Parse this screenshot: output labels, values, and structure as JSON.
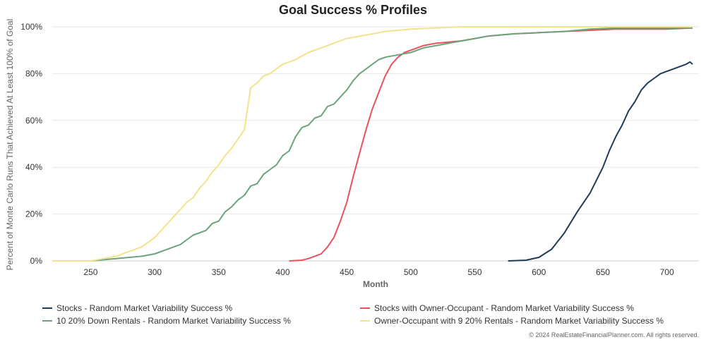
{
  "credit": "© 2024 RealEstateFinancialPlanner.com. All rights reserved.",
  "chart_data": {
    "type": "line",
    "title": "Goal Success % Profiles",
    "xlabel": "Month",
    "ylabel": "Percent of Monte Carlo Runs That Achieved At Least 100% of Goal",
    "xlim": [
      220,
      725
    ],
    "ylim": [
      0,
      100
    ],
    "x_ticks": [
      "250",
      "300",
      "350",
      "400",
      "450",
      "500",
      "550",
      "600",
      "650",
      "700"
    ],
    "y_ticks": [
      "0%",
      "20%",
      "40%",
      "60%",
      "80%",
      "100%"
    ],
    "grid": "horizontal",
    "legend_position": "bottom",
    "series": [
      {
        "name": "Stocks - Random Market Variability Success %",
        "color": "#1f3b57",
        "points": [
          [
            576,
            0
          ],
          [
            590,
            0.3
          ],
          [
            600,
            1.5
          ],
          [
            610,
            5
          ],
          [
            620,
            12
          ],
          [
            630,
            21
          ],
          [
            640,
            29
          ],
          [
            650,
            40
          ],
          [
            655,
            47
          ],
          [
            660,
            53
          ],
          [
            665,
            58
          ],
          [
            670,
            64
          ],
          [
            675,
            68
          ],
          [
            680,
            73
          ],
          [
            685,
            76
          ],
          [
            690,
            78
          ],
          [
            695,
            80
          ],
          [
            700,
            81
          ],
          [
            705,
            82
          ],
          [
            710,
            83
          ],
          [
            715,
            84
          ],
          [
            718,
            85
          ],
          [
            720,
            84
          ]
        ]
      },
      {
        "name": "Stocks with Owner-Occupant - Random Market Variability Success %",
        "color": "#e8535b",
        "points": [
          [
            405,
            0
          ],
          [
            415,
            0.3
          ],
          [
            420,
            1
          ],
          [
            425,
            2
          ],
          [
            430,
            3
          ],
          [
            435,
            6
          ],
          [
            440,
            10
          ],
          [
            445,
            17
          ],
          [
            450,
            25
          ],
          [
            455,
            36
          ],
          [
            460,
            46
          ],
          [
            465,
            56
          ],
          [
            470,
            65
          ],
          [
            475,
            72
          ],
          [
            480,
            79
          ],
          [
            485,
            84
          ],
          [
            490,
            87
          ],
          [
            495,
            89
          ],
          [
            500,
            90
          ],
          [
            510,
            92
          ],
          [
            520,
            93
          ],
          [
            530,
            93.5
          ],
          [
            540,
            94
          ],
          [
            550,
            95
          ],
          [
            560,
            96
          ],
          [
            570,
            96.5
          ],
          [
            580,
            97
          ],
          [
            600,
            97.5
          ],
          [
            620,
            98
          ],
          [
            640,
            98.5
          ],
          [
            660,
            99
          ],
          [
            680,
            99
          ],
          [
            700,
            99
          ],
          [
            720,
            99.5
          ]
        ]
      },
      {
        "name": "10 20% Down Rentals - Random Market Variability Success %",
        "color": "#6aa47d",
        "points": [
          [
            220,
            0
          ],
          [
            250,
            0
          ],
          [
            260,
            0.5
          ],
          [
            270,
            1
          ],
          [
            280,
            1.5
          ],
          [
            290,
            2
          ],
          [
            300,
            3
          ],
          [
            310,
            5
          ],
          [
            320,
            7
          ],
          [
            330,
            11
          ],
          [
            340,
            13
          ],
          [
            345,
            16
          ],
          [
            350,
            17
          ],
          [
            355,
            21
          ],
          [
            360,
            23
          ],
          [
            365,
            26
          ],
          [
            370,
            28
          ],
          [
            375,
            32
          ],
          [
            380,
            33
          ],
          [
            385,
            37
          ],
          [
            390,
            39
          ],
          [
            395,
            41
          ],
          [
            400,
            45
          ],
          [
            405,
            47
          ],
          [
            410,
            53
          ],
          [
            415,
            57
          ],
          [
            420,
            58
          ],
          [
            425,
            61
          ],
          [
            430,
            62
          ],
          [
            435,
            66
          ],
          [
            440,
            67
          ],
          [
            445,
            70
          ],
          [
            450,
            73
          ],
          [
            455,
            77
          ],
          [
            460,
            80
          ],
          [
            465,
            82
          ],
          [
            470,
            84
          ],
          [
            475,
            86
          ],
          [
            480,
            87
          ],
          [
            490,
            88
          ],
          [
            500,
            89
          ],
          [
            510,
            91
          ],
          [
            520,
            92
          ],
          [
            530,
            93
          ],
          [
            540,
            94
          ],
          [
            550,
            95
          ],
          [
            560,
            96
          ],
          [
            580,
            97
          ],
          [
            600,
            97.5
          ],
          [
            620,
            98
          ],
          [
            640,
            99
          ],
          [
            660,
            99.5
          ],
          [
            680,
            99.5
          ],
          [
            700,
            99.5
          ],
          [
            720,
            99.5
          ]
        ]
      },
      {
        "name": "Owner-Occupant with 9 20% Rentals - Random Market Variability Success %",
        "color": "#f2e38c",
        "points": [
          [
            220,
            0
          ],
          [
            250,
            0
          ],
          [
            260,
            1
          ],
          [
            270,
            2
          ],
          [
            280,
            4
          ],
          [
            290,
            6
          ],
          [
            300,
            10
          ],
          [
            305,
            13
          ],
          [
            310,
            16
          ],
          [
            315,
            19
          ],
          [
            320,
            22
          ],
          [
            325,
            25
          ],
          [
            330,
            27
          ],
          [
            335,
            31
          ],
          [
            340,
            34
          ],
          [
            345,
            38
          ],
          [
            350,
            41
          ],
          [
            355,
            45
          ],
          [
            360,
            48
          ],
          [
            365,
            52
          ],
          [
            370,
            56
          ],
          [
            375,
            74
          ],
          [
            380,
            76
          ],
          [
            385,
            79
          ],
          [
            390,
            80
          ],
          [
            395,
            82
          ],
          [
            400,
            84
          ],
          [
            410,
            86
          ],
          [
            420,
            89
          ],
          [
            430,
            91
          ],
          [
            440,
            93
          ],
          [
            450,
            95
          ],
          [
            460,
            96
          ],
          [
            470,
            97
          ],
          [
            480,
            98
          ],
          [
            490,
            98.5
          ],
          [
            500,
            99
          ],
          [
            520,
            99.5
          ],
          [
            540,
            100
          ],
          [
            560,
            100
          ],
          [
            600,
            100
          ],
          [
            650,
            100
          ],
          [
            700,
            100
          ],
          [
            720,
            100
          ]
        ]
      }
    ]
  }
}
